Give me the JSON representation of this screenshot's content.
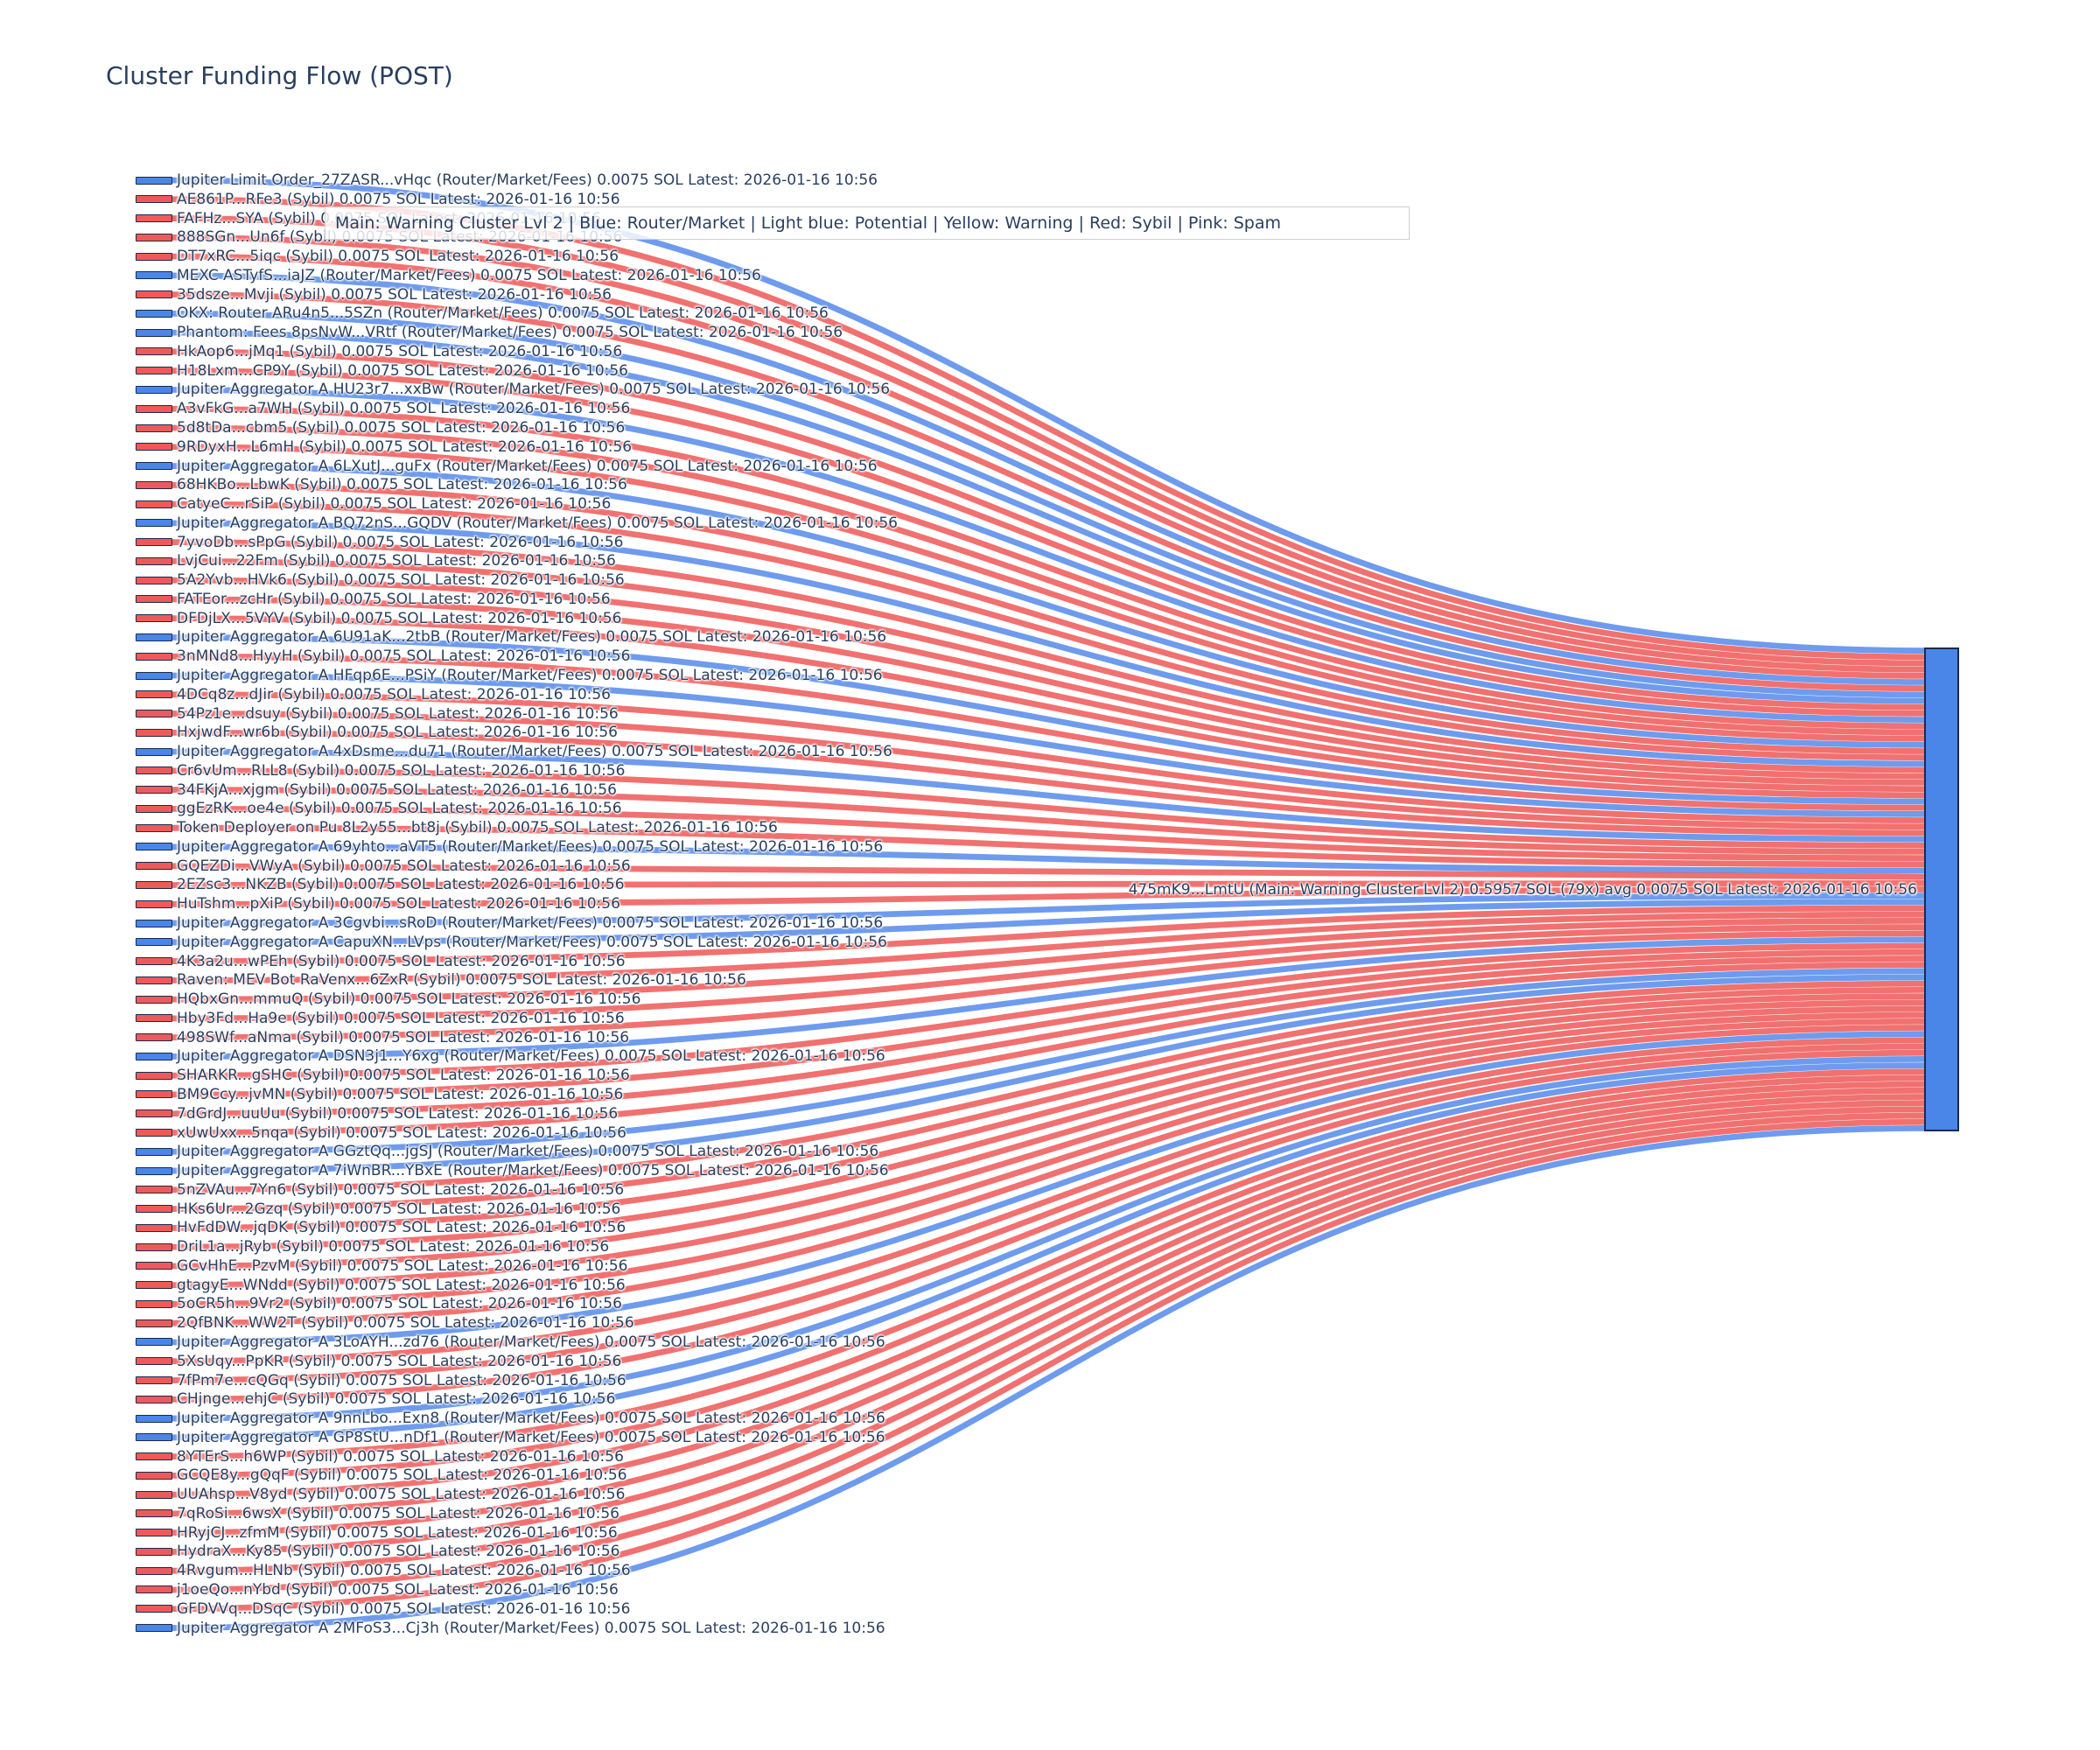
{
  "chart_data": {
    "type": "sankey",
    "title": "Cluster Funding Flow (POST)",
    "annotation": "Main: Warning Cluster Lvl 2  |  Blue: Router/Market | Light blue: Potential | Yellow: Warning | Red: Sybil | Pink: Spam",
    "link_value_sol": 0.0075,
    "latest": "2026-01-16 10:56",
    "colors": {
      "sybil_node": "#ee5a5a",
      "router_node": "#4a86e8",
      "sybil_link": "rgba(236,78,76,0.8)",
      "router_link": "rgba(74,130,232,0.8)",
      "target_node": "#4a86e8",
      "text": "#2a3f5f"
    },
    "target_node": {
      "label": "475mK9...LmtU (Main: Warning Cluster Lvl 2) 0.5957 SOL (79x) avg 0.0075 SOL Latest: 2026-01-16 10:56",
      "total_sol": 0.5957,
      "tx_count": 79,
      "avg_sol": 0.0075
    },
    "sources": [
      {
        "label": "Jupiter Limit Order_27ZASR...vHqc (Router/Market/Fees) 0.0075 SOL Latest: 2026-01-16 10:56",
        "type": "router"
      },
      {
        "label": "AE861P...RFe3 (Sybil) 0.0075 SOL Latest: 2026-01-16 10:56",
        "type": "sybil"
      },
      {
        "label": "FAFHz...SYA (Sybil) 0.0075 SOL Latest: 2026-01-16 10:56",
        "type": "sybil"
      },
      {
        "label": "888SGn...Un6f (Sybil) 0.0075 SOL Latest: 2026-01-16 10:56",
        "type": "sybil"
      },
      {
        "label": "DT7xRC...5iqc (Sybil) 0.0075 SOL Latest: 2026-01-16 10:56",
        "type": "sybil"
      },
      {
        "label": "MEXC ASTyfS...iaJZ (Router/Market/Fees) 0.0075 SOL Latest: 2026-01-16 10:56",
        "type": "router"
      },
      {
        "label": "35dsze...Mvji (Sybil) 0.0075 SOL Latest: 2026-01-16 10:56",
        "type": "sybil"
      },
      {
        "label": "OKX: Router ARu4n5...5SZn (Router/Market/Fees) 0.0075 SOL Latest: 2026-01-16 10:56",
        "type": "router"
      },
      {
        "label": "Phantom: Fees 8psNvW...VRtf (Router/Market/Fees) 0.0075 SOL Latest: 2026-01-16 10:56",
        "type": "router"
      },
      {
        "label": "HkAop6...jMq1 (Sybil) 0.0075 SOL Latest: 2026-01-16 10:56",
        "type": "sybil"
      },
      {
        "label": "H18Lxm...CP9Y (Sybil) 0.0075 SOL Latest: 2026-01-16 10:56",
        "type": "sybil"
      },
      {
        "label": "Jupiter Aggregator A HU23r7...xxBw (Router/Market/Fees) 0.0075 SOL Latest: 2026-01-16 10:56",
        "type": "router"
      },
      {
        "label": "A3vFkG...a7WH (Sybil) 0.0075 SOL Latest: 2026-01-16 10:56",
        "type": "sybil"
      },
      {
        "label": "5d8tDa...cbm5 (Sybil) 0.0075 SOL Latest: 2026-01-16 10:56",
        "type": "sybil"
      },
      {
        "label": "9RDyxH...L6mH (Sybil) 0.0075 SOL Latest: 2026-01-16 10:56",
        "type": "sybil"
      },
      {
        "label": "Jupiter Aggregator A 6LXutJ...guFx (Router/Market/Fees) 0.0075 SOL Latest: 2026-01-16 10:56",
        "type": "router"
      },
      {
        "label": "68HKBo...LbwK (Sybil) 0.0075 SOL Latest: 2026-01-16 10:56",
        "type": "sybil"
      },
      {
        "label": "CatyeC...rSiP (Sybil) 0.0075 SOL Latest: 2026-01-16 10:56",
        "type": "sybil"
      },
      {
        "label": "Jupiter Aggregator A BQ72nS...GQDV (Router/Market/Fees) 0.0075 SOL Latest: 2026-01-16 10:56",
        "type": "router"
      },
      {
        "label": "7yvoDb...sPpG (Sybil) 0.0075 SOL Latest: 2026-01-16 10:56",
        "type": "sybil"
      },
      {
        "label": "LvjCui...22Fm (Sybil) 0.0075 SOL Latest: 2026-01-16 10:56",
        "type": "sybil"
      },
      {
        "label": "5A2Yvb...HVk6 (Sybil) 0.0075 SOL Latest: 2026-01-16 10:56",
        "type": "sybil"
      },
      {
        "label": "FATEor...zcHr (Sybil) 0.0075 SOL Latest: 2026-01-16 10:56",
        "type": "sybil"
      },
      {
        "label": "DFDjLX...5VYV (Sybil) 0.0075 SOL Latest: 2026-01-16 10:56",
        "type": "sybil"
      },
      {
        "label": "Jupiter Aggregator A 6U91aK...2tbB (Router/Market/Fees) 0.0075 SOL Latest: 2026-01-16 10:56",
        "type": "router"
      },
      {
        "label": "3nMNd8...HyyH (Sybil) 0.0075 SOL Latest: 2026-01-16 10:56",
        "type": "sybil"
      },
      {
        "label": "Jupiter Aggregator A HFqp6E...PSiY (Router/Market/Fees) 0.0075 SOL Latest: 2026-01-16 10:56",
        "type": "router"
      },
      {
        "label": "4DCq8z...dJir (Sybil) 0.0075 SOL Latest: 2026-01-16 10:56",
        "type": "sybil"
      },
      {
        "label": "54Pz1e...dsuy (Sybil) 0.0075 SOL Latest: 2026-01-16 10:56",
        "type": "sybil"
      },
      {
        "label": "HxjwdF...wr6b (Sybil) 0.0075 SOL Latest: 2026-01-16 10:56",
        "type": "sybil"
      },
      {
        "label": "Jupiter Aggregator A 4xDsme...du71 (Router/Market/Fees) 0.0075 SOL Latest: 2026-01-16 10:56",
        "type": "router"
      },
      {
        "label": "Cr6vUm...RLL8 (Sybil) 0.0075 SOL Latest: 2026-01-16 10:56",
        "type": "sybil"
      },
      {
        "label": "34FKjA...xjgm (Sybil) 0.0075 SOL Latest: 2026-01-16 10:56",
        "type": "sybil"
      },
      {
        "label": "ggEzRK...oe4e (Sybil) 0.0075 SOL Latest: 2026-01-16 10:56",
        "type": "sybil"
      },
      {
        "label": "Token Deployer on Pu 8L2y55...bt8j (Sybil) 0.0075 SOL Latest: 2026-01-16 10:56",
        "type": "sybil"
      },
      {
        "label": "Jupiter Aggregator A 69yhto...aVT5 (Router/Market/Fees) 0.0075 SOL Latest: 2026-01-16 10:56",
        "type": "router"
      },
      {
        "label": "GQEZDi...VWyA (Sybil) 0.0075 SOL Latest: 2026-01-16 10:56",
        "type": "sybil"
      },
      {
        "label": "2EZsc3...NKZB (Sybil) 0.0075 SOL Latest: 2026-01-16 10:56",
        "type": "sybil"
      },
      {
        "label": "HuTshm...pXiP (Sybil) 0.0075 SOL Latest: 2026-01-16 10:56",
        "type": "sybil"
      },
      {
        "label": "Jupiter Aggregator A 3Cgvbi...sRoD (Router/Market/Fees) 0.0075 SOL Latest: 2026-01-16 10:56",
        "type": "router"
      },
      {
        "label": "Jupiter Aggregator A CapuXN...LVps (Router/Market/Fees) 0.0075 SOL Latest: 2026-01-16 10:56",
        "type": "router"
      },
      {
        "label": "4K3a2u...wPEh (Sybil) 0.0075 SOL Latest: 2026-01-16 10:56",
        "type": "sybil"
      },
      {
        "label": "Raven: MEV Bot RaVenx...6ZxR (Sybil) 0.0075 SOL Latest: 2026-01-16 10:56",
        "type": "sybil"
      },
      {
        "label": "HQbxGn...mmuQ (Sybil) 0.0075 SOL Latest: 2026-01-16 10:56",
        "type": "sybil"
      },
      {
        "label": "Hby3Fd...Ha9e (Sybil) 0.0075 SOL Latest: 2026-01-16 10:56",
        "type": "sybil"
      },
      {
        "label": "498SWf...aNma (Sybil) 0.0075 SOL Latest: 2026-01-16 10:56",
        "type": "sybil"
      },
      {
        "label": "Jupiter Aggregator A DSN3j1...Y6xg (Router/Market/Fees) 0.0075 SOL Latest: 2026-01-16 10:56",
        "type": "router"
      },
      {
        "label": "SHARKR...gSHC (Sybil) 0.0075 SOL Latest: 2026-01-16 10:56",
        "type": "sybil"
      },
      {
        "label": "BM9Ccy...jvMN (Sybil) 0.0075 SOL Latest: 2026-01-16 10:56",
        "type": "sybil"
      },
      {
        "label": "7dGrdJ...uuUu (Sybil) 0.0075 SOL Latest: 2026-01-16 10:56",
        "type": "sybil"
      },
      {
        "label": "xUwUxx...5nqa (Sybil) 0.0075 SOL Latest: 2026-01-16 10:56",
        "type": "sybil"
      },
      {
        "label": "Jupiter Aggregator A GGztQq...jgSJ (Router/Market/Fees) 0.0075 SOL Latest: 2026-01-16 10:56",
        "type": "router"
      },
      {
        "label": "Jupiter Aggregator A 7iWnBR...YBxE (Router/Market/Fees) 0.0075 SOL Latest: 2026-01-16 10:56",
        "type": "router"
      },
      {
        "label": "5nZVAu...7Yn6 (Sybil) 0.0075 SOL Latest: 2026-01-16 10:56",
        "type": "sybil"
      },
      {
        "label": "HKs6Ur...2Gzq (Sybil) 0.0075 SOL Latest: 2026-01-16 10:56",
        "type": "sybil"
      },
      {
        "label": "HvFdDW...jqDK (Sybil) 0.0075 SOL Latest: 2026-01-16 10:56",
        "type": "sybil"
      },
      {
        "label": "DriL1a...jRyb (Sybil) 0.0075 SOL Latest: 2026-01-16 10:56",
        "type": "sybil"
      },
      {
        "label": "GCvHhE...PzvM (Sybil) 0.0075 SOL Latest: 2026-01-16 10:56",
        "type": "sybil"
      },
      {
        "label": "gtagyE...WNdd (Sybil) 0.0075 SOL Latest: 2026-01-16 10:56",
        "type": "sybil"
      },
      {
        "label": "5oCR5h...9Vr2 (Sybil) 0.0075 SOL Latest: 2026-01-16 10:56",
        "type": "sybil"
      },
      {
        "label": "2QfBNK...WW2T (Sybil) 0.0075 SOL Latest: 2026-01-16 10:56",
        "type": "sybil"
      },
      {
        "label": "Jupiter Aggregator A 3LoAYH...zd76 (Router/Market/Fees) 0.0075 SOL Latest: 2026-01-16 10:56",
        "type": "router"
      },
      {
        "label": "5XsUqy...PpKR (Sybil) 0.0075 SOL Latest: 2026-01-16 10:56",
        "type": "sybil"
      },
      {
        "label": "7fPm7e...cQGq (Sybil) 0.0075 SOL Latest: 2026-01-16 10:56",
        "type": "sybil"
      },
      {
        "label": "CHjnge...ehjC (Sybil) 0.0075 SOL Latest: 2026-01-16 10:56",
        "type": "sybil"
      },
      {
        "label": "Jupiter Aggregator A 9nnLbo...Exn8 (Router/Market/Fees) 0.0075 SOL Latest: 2026-01-16 10:56",
        "type": "router"
      },
      {
        "label": "Jupiter Aggregator A GP8StU...nDf1 (Router/Market/Fees) 0.0075 SOL Latest: 2026-01-16 10:56",
        "type": "router"
      },
      {
        "label": "8YTErS...h6WP (Sybil) 0.0075 SOL Latest: 2026-01-16 10:56",
        "type": "sybil"
      },
      {
        "label": "GCQE8y...gQqF (Sybil) 0.0075 SOL Latest: 2026-01-16 10:56",
        "type": "sybil"
      },
      {
        "label": "UUAhsp...V8yd (Sybil) 0.0075 SOL Latest: 2026-01-16 10:56",
        "type": "sybil"
      },
      {
        "label": "7qRoSi...6wsX (Sybil) 0.0075 SOL Latest: 2026-01-16 10:56",
        "type": "sybil"
      },
      {
        "label": "HRyjCJ...zfmM (Sybil) 0.0075 SOL Latest: 2026-01-16 10:56",
        "type": "sybil"
      },
      {
        "label": "HydraX...Ky85 (Sybil) 0.0075 SOL Latest: 2026-01-16 10:56",
        "type": "sybil"
      },
      {
        "label": "4Rvgum...HLNb (Sybil) 0.0075 SOL Latest: 2026-01-16 10:56",
        "type": "sybil"
      },
      {
        "label": "j1oeQo...nYbd (Sybil) 0.0075 SOL Latest: 2026-01-16 10:56",
        "type": "sybil"
      },
      {
        "label": "GFDVVq...DSqC (Sybil) 0.0075 SOL Latest: 2026-01-16 10:56",
        "type": "sybil"
      },
      {
        "label": "Jupiter Aggregator A 2MFoS3...Cj3h (Router/Market/Fees) 0.0075 SOL Latest: 2026-01-16 10:56",
        "type": "router"
      }
    ]
  }
}
